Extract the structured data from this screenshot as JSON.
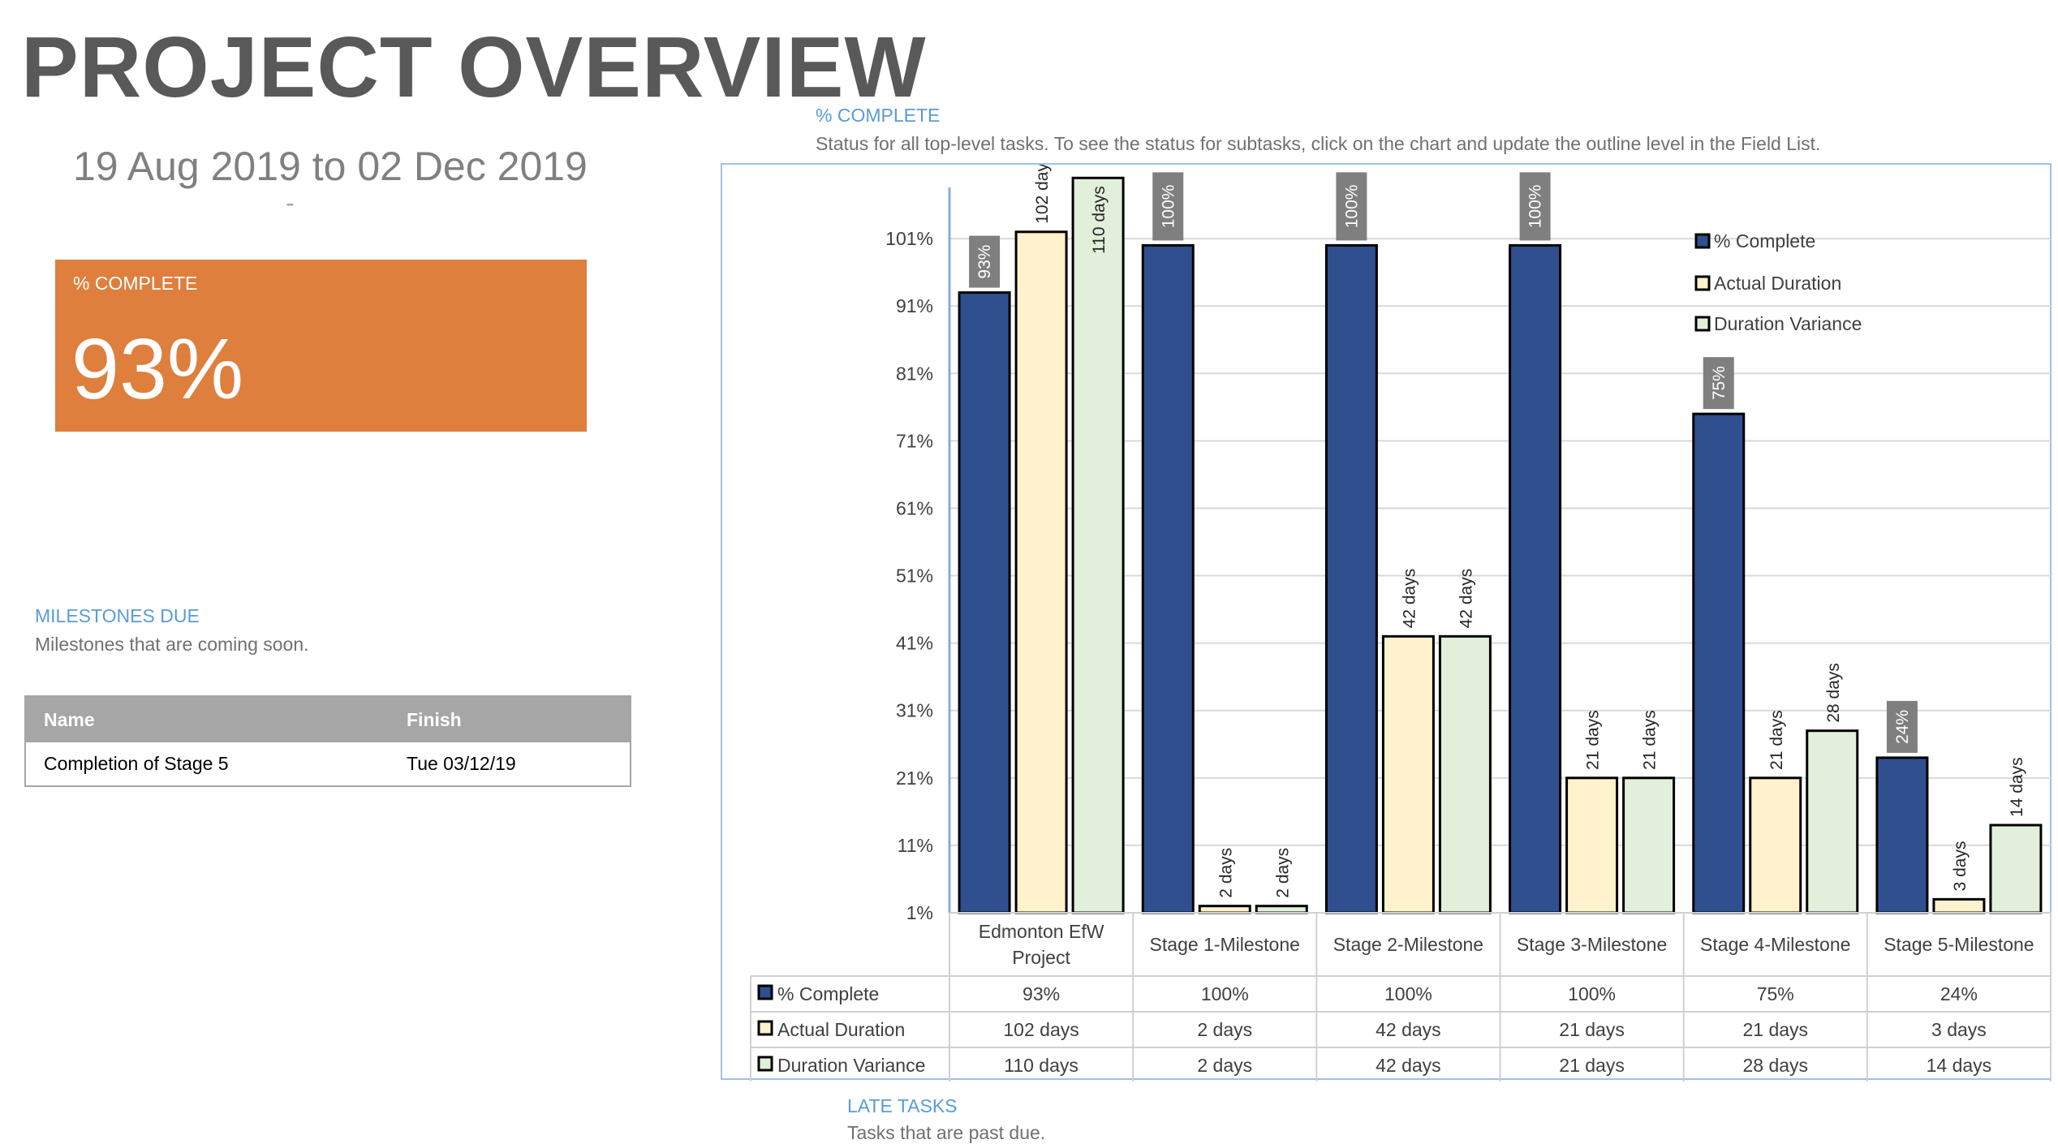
{
  "header": {
    "title": "PROJECT OVERVIEW",
    "date_range": "19 Aug 2019 to 02 Dec 2019",
    "date_sub": "-"
  },
  "kpi": {
    "label": "% COMPLETE",
    "value": "93%",
    "color": "#de7f3e"
  },
  "milestones": {
    "heading": "MILESTONES DUE",
    "description": "Milestones that are coming soon.",
    "columns": [
      "Name",
      "Finish"
    ],
    "rows": [
      {
        "name": "Completion of Stage 5",
        "finish": "Tue 03/12/19"
      }
    ]
  },
  "complete_section": {
    "heading": "% COMPLETE",
    "description": "Status for all top-level tasks. To see the status for subtasks, click on the chart and update the outline level in the Field List."
  },
  "late_tasks": {
    "heading": "LATE TASKS",
    "description": "Tasks that are past due."
  },
  "chart_data": {
    "type": "bar",
    "categories": [
      [
        "Edmonton EfW",
        "Project"
      ],
      [
        "Stage 1-Milestone"
      ],
      [
        "Stage 2-Milestone"
      ],
      [
        "Stage 3-Milestone"
      ],
      [
        "Stage 4-Milestone"
      ],
      [
        "Stage 5-Milestone"
      ]
    ],
    "y_ticks": [
      "1%",
      "11%",
      "21%",
      "31%",
      "41%",
      "51%",
      "61%",
      "71%",
      "81%",
      "91%",
      "101%"
    ],
    "ylim": [
      1,
      111
    ],
    "grid": true,
    "legend_position": "top-right",
    "series": [
      {
        "name": "% Complete",
        "color": "#2f4f8f",
        "values": [
          93,
          100,
          100,
          100,
          75,
          24
        ],
        "labels": [
          "93%",
          "100%",
          "100%",
          "100%",
          "75%",
          "24%"
        ],
        "table_values": [
          "93%",
          "100%",
          "100%",
          "100%",
          "75%",
          "24%"
        ]
      },
      {
        "name": "Actual Duration",
        "color": "#fff2cc",
        "values": [
          102,
          2,
          42,
          21,
          21,
          3
        ],
        "labels": [
          "102 days",
          "2 days",
          "42 days",
          "21 days",
          "21 days",
          "3 days"
        ],
        "table_values": [
          "102 days",
          "2 days",
          "42 days",
          "21 days",
          "21 days",
          "3 days"
        ]
      },
      {
        "name": "Duration Variance",
        "color": "#e2efda",
        "values": [
          110,
          2,
          42,
          21,
          28,
          14
        ],
        "labels": [
          "110 days",
          "2 days",
          "42 days",
          "21 days",
          "28 days",
          "14 days"
        ],
        "table_values": [
          "110 days",
          "2 days",
          "42 days",
          "21 days",
          "28 days",
          "14 days"
        ]
      }
    ]
  }
}
